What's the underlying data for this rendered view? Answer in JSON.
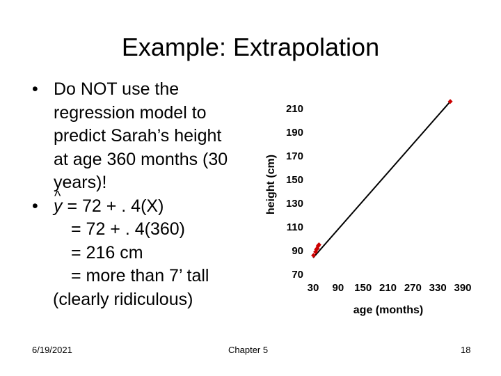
{
  "slide": {
    "title": "Example: Extrapolation",
    "bullets": {
      "b1_line1": "Do NOT use the",
      "b1_line2": "regression model to",
      "b1_line3": "predict Sarah’s height",
      "b1_line4": "at age 360 months (30",
      "b1_line5": "years)!",
      "b2_yhat": "y",
      "b2_hat": "^",
      "b2_line1_rest": " = 72 + . 4(X)",
      "b2_line2": "= 72 + . 4(360)",
      "b2_line3": "= 216 cm",
      "b2_line4": "= more than 7’ tall",
      "b2_line5": "(clearly ridiculous)",
      "bullet_char": "•"
    },
    "footer": {
      "date": "6/19/2021",
      "chapter": "Chapter 5",
      "page": "18"
    }
  },
  "chart_data": {
    "type": "scatter",
    "xlabel": "age (months)",
    "ylabel": "height (cm)",
    "xlim": [
      30,
      390
    ],
    "ylim": [
      70,
      210
    ],
    "x_ticks": [
      "30",
      "90",
      "150",
      "210",
      "270",
      "330",
      "390"
    ],
    "y_ticks": [
      "210",
      "190",
      "170",
      "150",
      "130",
      "110",
      "90",
      "70"
    ],
    "marker_color": "#cc0000",
    "line_color": "#000000",
    "grid": false,
    "points": [
      {
        "x": 31,
        "y": 86
      },
      {
        "x": 36,
        "y": 89
      },
      {
        "x": 38,
        "y": 91
      },
      {
        "x": 40,
        "y": 92
      },
      {
        "x": 42,
        "y": 94
      },
      {
        "x": 44,
        "y": 95
      },
      {
        "x": 360,
        "y": 216
      }
    ],
    "regression_line": {
      "x_start": 30,
      "x_end": 360,
      "intercept": 72,
      "slope": 0.4
    }
  }
}
